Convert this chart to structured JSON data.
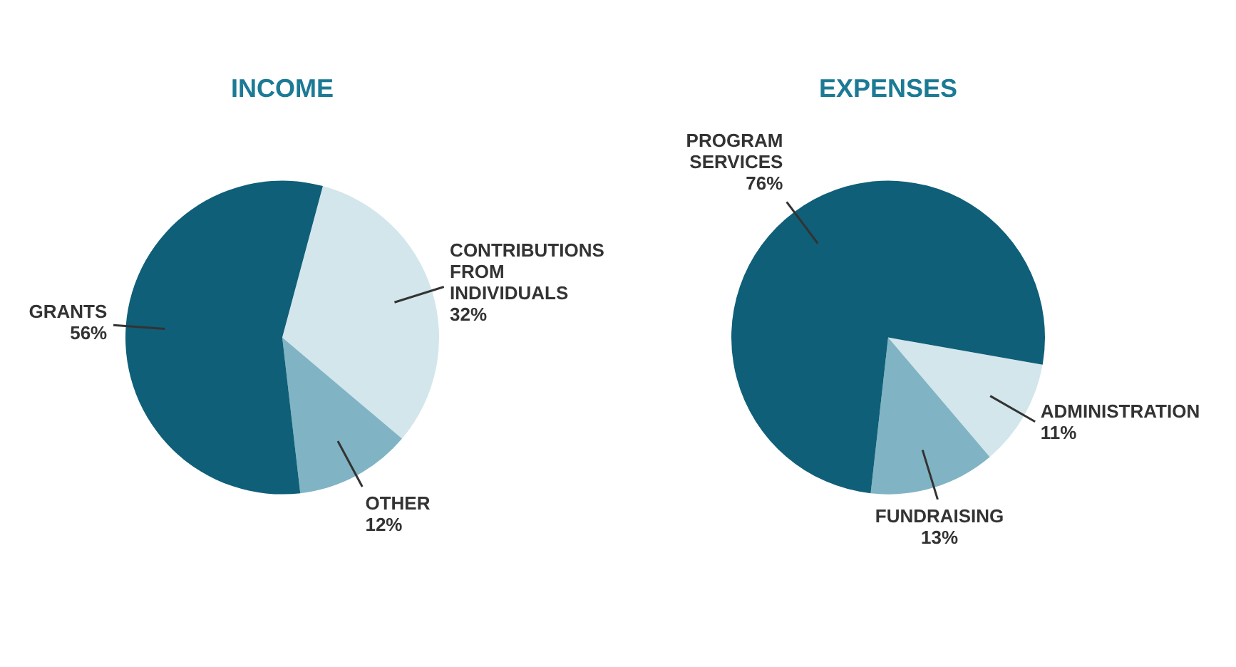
{
  "chart_data": [
    {
      "type": "pie",
      "title": "INCOME",
      "categories": [
        "CONTRIBUTIONS FROM INDIVIDUALS",
        "OTHER",
        "GRANTS"
      ],
      "values": [
        32,
        12,
        56
      ],
      "value_labels": [
        "32%",
        "12%",
        "56%"
      ],
      "colors": [
        "#d3e6ec",
        "#80b4c4",
        "#0f5f78"
      ]
    },
    {
      "type": "pie",
      "title": "EXPENSES",
      "categories": [
        "ADMINISTRATION",
        "FUNDRAISING",
        "PROGRAM SERVICES"
      ],
      "values": [
        11,
        13,
        76
      ],
      "value_labels": [
        "11%",
        "13%",
        "76%"
      ],
      "colors": [
        "#d3e6ec",
        "#80b4c4",
        "#0f5f78"
      ]
    }
  ]
}
